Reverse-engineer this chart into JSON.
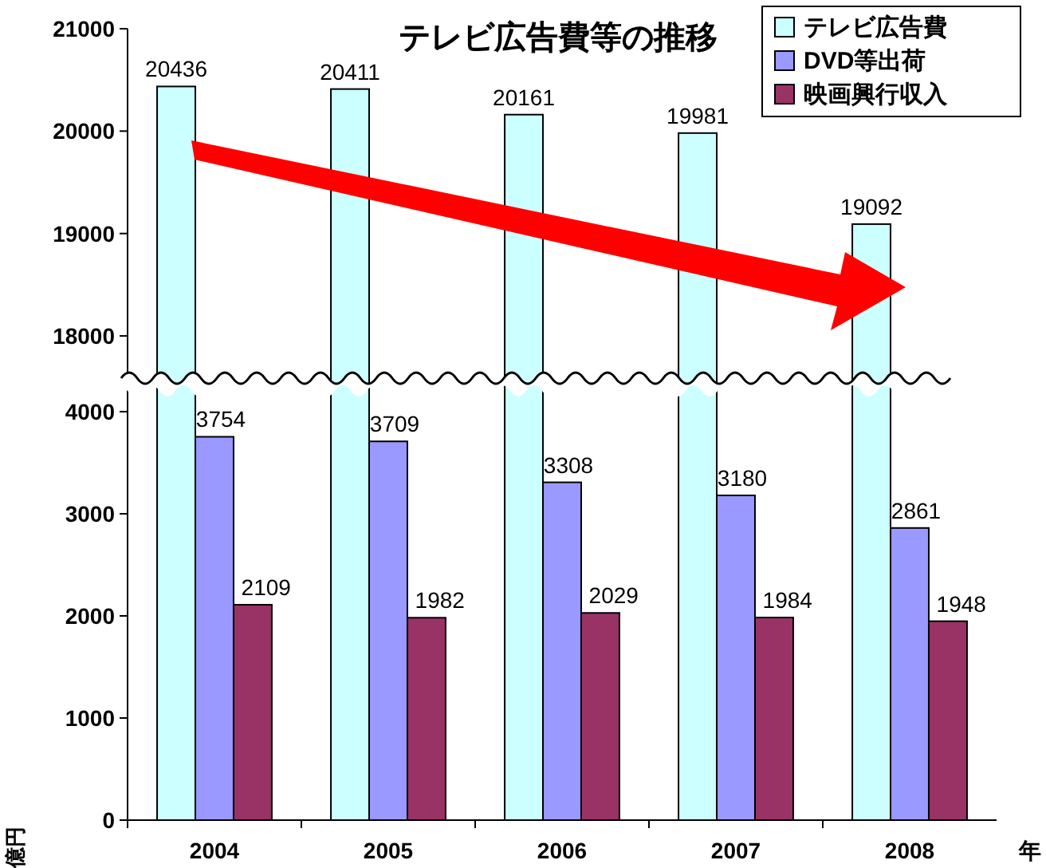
{
  "chart_data": [
    {
      "type": "bar",
      "title": "テレビ広告費等の推移",
      "categories": [
        "2004",
        "2005",
        "2006",
        "2007",
        "2008"
      ],
      "ylim": [
        17650,
        21000
      ],
      "yticks": [
        18000,
        19000,
        20000,
        21000
      ],
      "tick_labels": "y",
      "legend": "top right",
      "data_labels": true,
      "series": [
        {
          "name": "テレビ広告費",
          "color": "#ccffff",
          "values": [
            20436,
            20411,
            20161,
            19981,
            19092
          ]
        },
        {
          "name": "DVD等出荷",
          "color": "#9999ff",
          "values": [
            null,
            null,
            null,
            null,
            null
          ]
        },
        {
          "name": "映画興行収入",
          "color": "#993366",
          "values": [
            null,
            null,
            null,
            null,
            null
          ]
        }
      ]
    },
    {
      "type": "bar",
      "categories": [
        "2004",
        "2005",
        "2006",
        "2007",
        "2008"
      ],
      "ylim": [
        0,
        4250
      ],
      "yticks": [
        0,
        1000,
        2000,
        3000,
        4000
      ],
      "xlabel": "年",
      "ylabel": "億円",
      "series": [
        {
          "color": "#9999ff",
          "values": [
            3754,
            3709,
            3308,
            3180,
            2861
          ],
          "value_labels": [
            "3754",
            "3709",
            "3308",
            "3180",
            "2861"
          ]
        },
        {
          "color": "#993366",
          "values": [
            2109,
            1982,
            2029,
            1984,
            1948
          ],
          "value_labels": [
            "2109",
            "1982",
            "2029",
            "1984",
            "1948"
          ]
        }
      ]
    }
  ]
}
